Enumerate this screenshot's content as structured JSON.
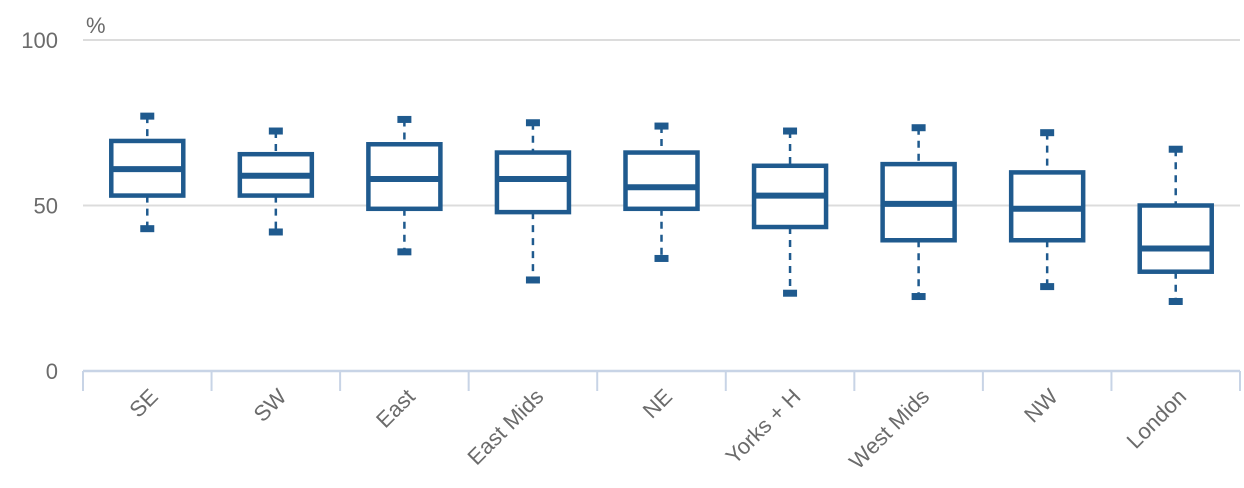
{
  "chart_data": {
    "type": "boxplot",
    "title": "",
    "xlabel": "",
    "ylabel": "%",
    "ylim": [
      0,
      100
    ],
    "yticks": [
      0,
      50,
      100
    ],
    "grid": true,
    "colors": {
      "box": "#1f5a8e",
      "axis": "#c8d4e6",
      "grid": "#dcdcdc",
      "text": "#6b6b6b"
    },
    "categories": [
      "SE",
      "SW",
      "East",
      "East Mids",
      "NE",
      "Yorks + H",
      "West Mids",
      "NW",
      "London"
    ],
    "boxes": [
      {
        "min": 43,
        "q1": 53,
        "median": 61,
        "q3": 69.5,
        "max": 77
      },
      {
        "min": 42,
        "q1": 53,
        "median": 59,
        "q3": 65.5,
        "max": 72.5
      },
      {
        "min": 36,
        "q1": 49,
        "median": 58,
        "q3": 68.5,
        "max": 76
      },
      {
        "min": 27.5,
        "q1": 48,
        "median": 58,
        "q3": 66,
        "max": 75
      },
      {
        "min": 34,
        "q1": 49,
        "median": 55.5,
        "q3": 66,
        "max": 74
      },
      {
        "min": 23.5,
        "q1": 43.5,
        "median": 53,
        "q3": 62,
        "max": 72.5
      },
      {
        "min": 22.5,
        "q1": 39.5,
        "median": 50.5,
        "q3": 62.5,
        "max": 73.5
      },
      {
        "min": 25.5,
        "q1": 39.5,
        "median": 49,
        "q3": 60,
        "max": 72
      },
      {
        "min": 21,
        "q1": 30,
        "median": 37,
        "q3": 50,
        "max": 67
      }
    ]
  }
}
